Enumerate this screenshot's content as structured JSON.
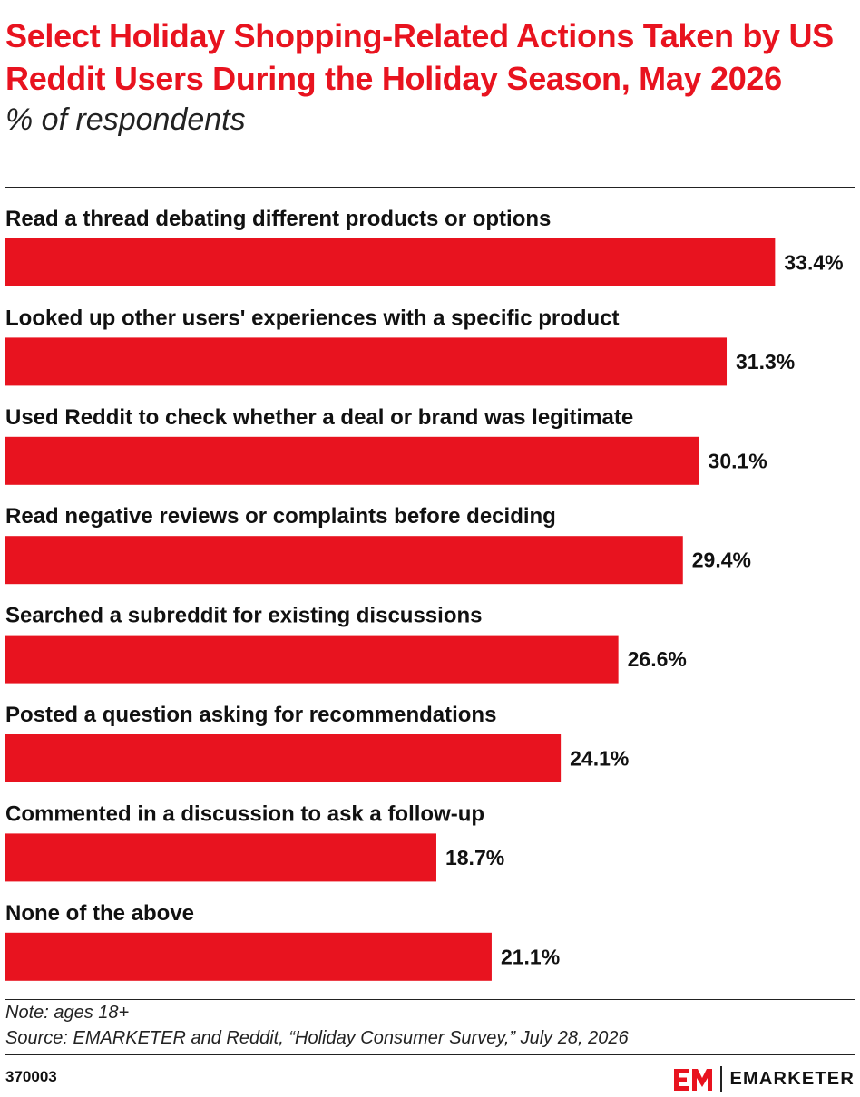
{
  "header": {
    "title": "Select Holiday Shopping-Related Actions Taken by US Reddit Users During the Holiday Season, May 2026",
    "subtitle": "% of respondents"
  },
  "chart_data": {
    "type": "bar",
    "orientation": "horizontal",
    "categories": [
      "Read a thread debating different products or options",
      "Looked up other users' experiences with a specific product",
      "Used Reddit to check whether a deal or brand was legitimate",
      "Read negative reviews or complaints before deciding",
      "Searched a subreddit for existing discussions",
      "Posted a question asking for recommendations",
      "Commented in a discussion to ask a follow-up",
      "None of the above"
    ],
    "values": [
      33.4,
      31.3,
      30.1,
      29.4,
      26.6,
      24.1,
      18.7,
      21.1
    ],
    "value_labels": [
      "33.4%",
      "31.3%",
      "30.1%",
      "29.4%",
      "26.6%",
      "24.1%",
      "18.7%",
      "21.1%"
    ],
    "title": "Select Holiday Shopping-Related Actions Taken by US Reddit Users During the Holiday Season, May 2026",
    "subtitle": "% of respondents",
    "bar_color": "#e8131f",
    "grid": false,
    "legend": "none"
  },
  "footer": {
    "note": "Note: ages 18+",
    "source": "Source: EMARKETER and Reddit, “Holiday Consumer Survey,” July 28, 2026",
    "chart_id": "370003",
    "brand_name": "EMARKETER",
    "brand_logo": "EM",
    "brand_color": "#e8131f"
  }
}
